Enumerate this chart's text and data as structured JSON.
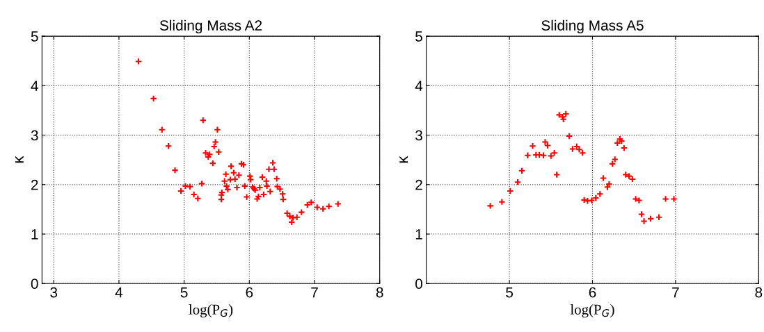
{
  "chart_data": [
    {
      "type": "scatter",
      "title": "Sliding Mass A2",
      "xlabel": "log(P$_{G}$)",
      "ylabel": "κ",
      "xlim": [
        2.82,
        8
      ],
      "xticks": [
        3,
        4,
        5,
        6,
        7,
        8
      ],
      "ylim": [
        0,
        5
      ],
      "yticks": [
        0,
        1,
        2,
        3,
        4,
        5
      ],
      "grid": true,
      "marker": "cross",
      "series": [
        {
          "color": "#ff0000",
          "x": [
            4.3,
            4.53,
            4.66,
            4.76,
            4.86,
            4.95,
            5.02,
            5.09,
            5.15,
            5.21,
            5.27,
            5.29,
            5.51,
            5.48,
            5.46,
            5.53,
            5.33,
            5.39,
            5.37,
            5.44,
            5.57,
            5.57,
            5.58,
            5.62,
            5.64,
            5.65,
            5.67,
            5.72,
            5.71,
            5.76,
            5.78,
            5.84,
            5.81,
            5.88,
            5.91,
            5.93,
            5.96,
            6.01,
            6.02,
            6.05,
            6.07,
            6.09,
            6.12,
            6.14,
            6.16,
            6.2,
            6.22,
            6.26,
            6.27,
            6.3,
            6.32,
            6.36,
            6.38,
            6.42,
            6.43,
            6.47,
            6.51,
            6.52,
            6.58,
            6.62,
            6.65,
            6.67,
            6.73,
            6.8,
            6.89,
            6.95,
            7.04,
            7.13,
            7.22,
            7.36
          ],
          "values": [
            4.49,
            3.74,
            3.11,
            2.78,
            2.29,
            1.87,
            1.97,
            1.96,
            1.8,
            1.72,
            2.02,
            3.3,
            3.11,
            2.86,
            2.77,
            2.66,
            2.64,
            2.61,
            2.56,
            2.43,
            1.79,
            1.7,
            1.84,
            2.07,
            2.21,
            1.97,
            1.9,
            2.37,
            2.1,
            2.24,
            2.11,
            2.19,
            1.94,
            2.42,
            2.4,
            1.97,
            1.75,
            2.17,
            2.1,
            1.95,
            1.92,
            1.89,
            1.71,
            1.76,
            1.94,
            2.15,
            1.8,
            2.07,
            1.97,
            2.31,
            1.86,
            2.44,
            2.31,
            2.12,
            1.96,
            1.91,
            1.81,
            1.7,
            1.42,
            1.36,
            1.24,
            1.33,
            1.34,
            1.44,
            1.59,
            1.64,
            1.54,
            1.51,
            1.56,
            1.61
          ]
        }
      ]
    },
    {
      "type": "scatter",
      "title": "Sliding Mass A5",
      "xlabel": "log(P$_{G}$)",
      "ylabel": "κ",
      "xlim": [
        4,
        8
      ],
      "xticks": [
        5,
        6,
        7,
        8
      ],
      "ylim": [
        0,
        5
      ],
      "yticks": [
        0,
        1,
        2,
        3,
        4,
        5
      ],
      "grid": true,
      "marker": "cross",
      "series": [
        {
          "color": "#ff0000",
          "x": [
            4.77,
            4.91,
            5.01,
            5.1,
            5.15,
            5.22,
            5.28,
            5.32,
            5.36,
            5.41,
            5.43,
            5.46,
            5.5,
            5.54,
            5.57,
            5.6,
            5.64,
            5.65,
            5.68,
            5.72,
            5.76,
            5.81,
            5.84,
            5.88,
            5.9,
            5.94,
            5.99,
            6.04,
            6.09,
            6.13,
            6.18,
            6.2,
            6.24,
            6.27,
            6.3,
            6.33,
            6.35,
            6.38,
            6.4,
            6.44,
            6.48,
            6.52,
            6.56,
            6.59,
            6.62,
            6.7,
            6.8,
            6.88,
            6.98
          ],
          "values": [
            1.57,
            1.65,
            1.87,
            2.05,
            2.28,
            2.59,
            2.78,
            2.6,
            2.6,
            2.59,
            2.86,
            2.79,
            2.58,
            2.64,
            2.2,
            3.41,
            3.37,
            3.32,
            3.43,
            2.98,
            2.72,
            2.77,
            2.71,
            2.64,
            1.69,
            1.67,
            1.68,
            1.73,
            1.81,
            2.13,
            1.95,
            2.01,
            2.42,
            2.51,
            2.84,
            2.92,
            2.88,
            2.74,
            2.2,
            2.17,
            2.11,
            1.71,
            1.68,
            1.4,
            1.26,
            1.31,
            1.34,
            1.71,
            1.71
          ]
        }
      ]
    }
  ]
}
